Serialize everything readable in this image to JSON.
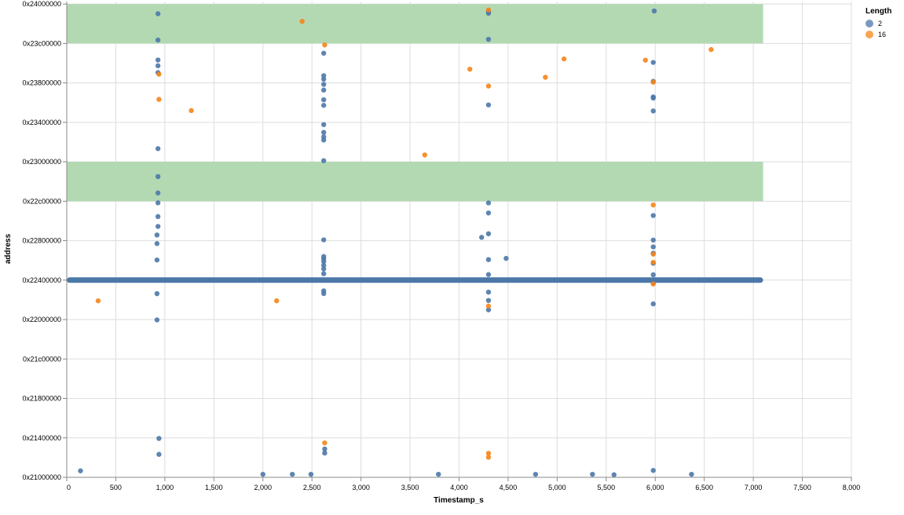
{
  "chart_data": {
    "type": "scatter",
    "xlabel": "Timestamp_s",
    "ylabel": "address",
    "xlim": [
      0,
      8000
    ],
    "ylim": [
      553648128,
      604241920
    ],
    "x_ticks": [
      0,
      500,
      1000,
      1500,
      2000,
      2500,
      3000,
      3500,
      4000,
      4500,
      5000,
      5500,
      6000,
      6500,
      7000,
      7500,
      8000
    ],
    "x_tick_labels": [
      "0",
      "500",
      "1,000",
      "1,500",
      "2,000",
      "2,500",
      "3,000",
      "3,500",
      "4,000",
      "4,500",
      "5,000",
      "5,500",
      "6,000",
      "6,500",
      "7,000",
      "7,500",
      "8,000"
    ],
    "y_ticks": [
      553648128,
      557842432,
      562036736,
      566231040,
      570425344,
      574619648,
      578813952,
      583008256,
      587202560,
      591396864,
      595591168,
      599785472,
      603979776
    ],
    "y_tick_labels": [
      "0x21000000",
      "0x21400000",
      "0x21800000",
      "0x21c00000",
      "0x22000000",
      "0x22400000",
      "0x22800000",
      "0x22c00000",
      "0x23000000",
      "0x23400000",
      "0x23800000",
      "0x23c00000",
      "0x24000000"
    ],
    "grid": true,
    "bands": [
      {
        "x": [
          0,
          7100
        ],
        "y": [
          583008256,
          587202560
        ],
        "color": "#b3d9b3"
      },
      {
        "x": [
          0,
          7100
        ],
        "y": [
          599785472,
          603979776
        ],
        "color": "#b3d9b3"
      }
    ],
    "baseline": {
      "x_start": 0,
      "x_end": 7100,
      "y": 574619648,
      "color": "#4c78a8"
    },
    "legend": {
      "title": "Length",
      "position": "top-right",
      "entries": [
        {
          "label": "2",
          "color": "#4c78a8"
        },
        {
          "label": "16",
          "color": "#f58518"
        }
      ]
    },
    "series": [
      {
        "name": "2",
        "color": "#4c78a8",
        "points": [
          [
            140,
            554340000
          ],
          [
            2000,
            553970000
          ],
          [
            2300,
            553970000
          ],
          [
            2490,
            553970000
          ],
          [
            3790,
            553970000
          ],
          [
            4780,
            553970000
          ],
          [
            5360,
            553970000
          ],
          [
            5580,
            553920000
          ],
          [
            5980,
            554380000
          ],
          [
            6370,
            553970000
          ],
          [
            940,
            556090000
          ],
          [
            940,
            557780000
          ],
          [
            2630,
            556230000
          ],
          [
            2630,
            556660000
          ],
          [
            920,
            570390000
          ],
          [
            920,
            573180000
          ],
          [
            920,
            576760000
          ],
          [
            920,
            578510000
          ],
          [
            920,
            579420000
          ],
          [
            930,
            580330000
          ],
          [
            930,
            581380000
          ],
          [
            930,
            583890000
          ],
          [
            930,
            582840000
          ],
          [
            930,
            585630000
          ],
          [
            930,
            588600000
          ],
          [
            930,
            596690000
          ],
          [
            930,
            597420000
          ],
          [
            930,
            598030000
          ],
          [
            930,
            600150000
          ],
          [
            930,
            602950000
          ],
          [
            2620,
            575300000
          ],
          [
            2620,
            573480000
          ],
          [
            2620,
            573190000
          ],
          [
            2620,
            575810000
          ],
          [
            2620,
            576190000
          ],
          [
            2620,
            576600000
          ],
          [
            2620,
            576890000
          ],
          [
            2620,
            577130000
          ],
          [
            2620,
            578900000
          ],
          [
            2620,
            587320000
          ],
          [
            2620,
            589520000
          ],
          [
            2620,
            589860000
          ],
          [
            2620,
            590330000
          ],
          [
            2620,
            591160000
          ],
          [
            2620,
            593210000
          ],
          [
            2620,
            593800000
          ],
          [
            2620,
            594830000
          ],
          [
            2620,
            595440000
          ],
          [
            2620,
            595990000
          ],
          [
            2620,
            596360000
          ],
          [
            2620,
            598750000
          ],
          [
            4300,
            571460000
          ],
          [
            4300,
            572460000
          ],
          [
            4300,
            573340000
          ],
          [
            4300,
            575210000
          ],
          [
            4300,
            576800000
          ],
          [
            4300,
            579550000
          ],
          [
            4300,
            581760000
          ],
          [
            4300,
            582830000
          ],
          [
            4230,
            579170000
          ],
          [
            4480,
            576930000
          ],
          [
            4300,
            593250000
          ],
          [
            4300,
            600230000
          ],
          [
            4300,
            603000000
          ],
          [
            4300,
            603180000
          ],
          [
            5980,
            572090000
          ],
          [
            5980,
            574340000
          ],
          [
            5980,
            575190000
          ],
          [
            5980,
            576410000
          ],
          [
            5980,
            577480000
          ],
          [
            5980,
            578150000
          ],
          [
            5980,
            578880000
          ],
          [
            5980,
            581490000
          ],
          [
            5980,
            592610000
          ],
          [
            5980,
            593980000
          ],
          [
            5980,
            594100000
          ],
          [
            5980,
            595760000
          ],
          [
            5980,
            597770000
          ],
          [
            5990,
            603240000
          ]
        ]
      },
      {
        "name": "16",
        "color": "#f58518",
        "points": [
          [
            320,
            572420000
          ],
          [
            940,
            593840000
          ],
          [
            940,
            596520000
          ],
          [
            1270,
            592650000
          ],
          [
            2140,
            572420000
          ],
          [
            2400,
            602140000
          ],
          [
            2630,
            599630000
          ],
          [
            2630,
            557310000
          ],
          [
            3650,
            587930000
          ],
          [
            4110,
            597050000
          ],
          [
            4300,
            595260000
          ],
          [
            4300,
            603350000
          ],
          [
            4300,
            571860000
          ],
          [
            4300,
            556200000
          ],
          [
            4300,
            555780000
          ],
          [
            4880,
            596190000
          ],
          [
            5070,
            598140000
          ],
          [
            5900,
            598010000
          ],
          [
            5980,
            582610000
          ],
          [
            5980,
            577380000
          ],
          [
            5980,
            576510000
          ],
          [
            5980,
            574210000
          ],
          [
            5980,
            595680000
          ],
          [
            6570,
            599140000
          ]
        ]
      }
    ]
  }
}
